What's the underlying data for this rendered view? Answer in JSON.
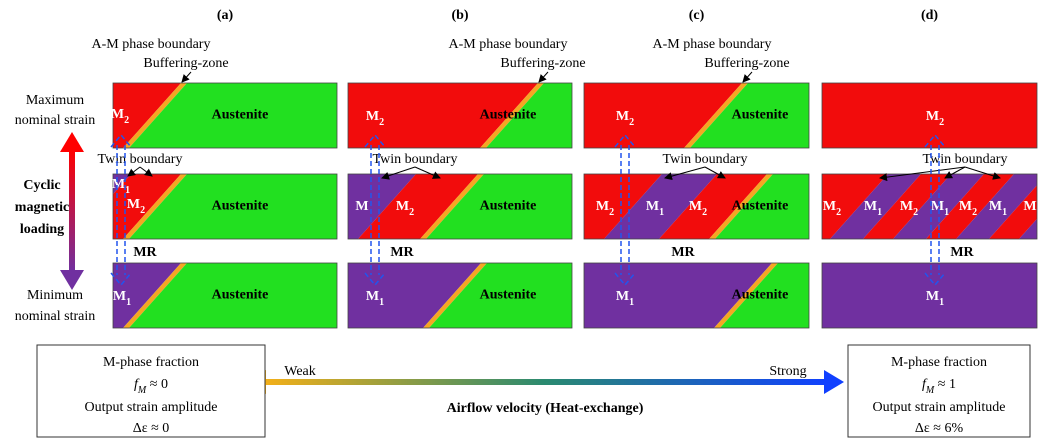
{
  "panels": [
    {
      "label": "(a)",
      "boundary_label": "A-M phase boundary",
      "buffer_label": "Buffering-zone",
      "twin_label": "Twin boundary",
      "mr_label": "MR",
      "rows": [
        {
          "phases": [
            {
              "base": "M",
              "sub": "2"
            }
          ],
          "austenite": "Austenite"
        },
        {
          "phases": [
            {
              "base": "M",
              "sub": "1"
            },
            {
              "base": "M",
              "sub": "2"
            }
          ],
          "austenite": "Austenite"
        },
        {
          "phases": [
            {
              "base": "M",
              "sub": "1"
            }
          ],
          "austenite": "Austenite"
        }
      ]
    },
    {
      "label": "(b)",
      "boundary_label": "A-M phase boundary",
      "buffer_label": "Buffering-zone",
      "twin_label": "Twin boundary",
      "mr_label": "MR",
      "rows": [
        {
          "phases": [
            {
              "base": "M",
              "sub": "2"
            }
          ],
          "austenite": "Austenite"
        },
        {
          "phases": [
            "M",
            {
              "base": "M",
              "sub": "2"
            }
          ],
          "austenite": "Austenite"
        },
        {
          "phases": [
            {
              "base": "M",
              "sub": "1"
            }
          ],
          "austenite": "Austenite"
        }
      ]
    },
    {
      "label": "(c)",
      "boundary_label": "A-M phase boundary",
      "buffer_label": "Buffering-zone",
      "twin_label": "Twin boundary",
      "mr_label": "MR",
      "rows": [
        {
          "phases": [
            {
              "base": "M",
              "sub": "2"
            }
          ],
          "austenite": "Austenite"
        },
        {
          "phases": [
            {
              "base": "M",
              "sub": "2"
            },
            {
              "base": "M",
              "sub": "1"
            },
            {
              "base": "M",
              "sub": "2"
            }
          ],
          "austenite": "Austenite"
        },
        {
          "phases": [
            {
              "base": "M",
              "sub": "1"
            }
          ],
          "austenite": "Austenite"
        }
      ]
    },
    {
      "label": "(d)",
      "twin_label": "Twin boundary",
      "mr_label": "MR",
      "rows": [
        {
          "phases": [
            {
              "base": "M",
              "sub": "2"
            }
          ]
        },
        {
          "phases": [
            {
              "base": "M",
              "sub": "2"
            },
            {
              "base": "M",
              "sub": "1"
            },
            {
              "base": "M",
              "sub": "2"
            },
            {
              "base": "M",
              "sub": "1"
            },
            {
              "base": "M",
              "sub": "2"
            },
            {
              "base": "M",
              "sub": "1"
            },
            "M"
          ]
        },
        {
          "phases": [
            {
              "base": "M",
              "sub": "1"
            }
          ]
        }
      ]
    }
  ],
  "left_labels": {
    "maximum": [
      "Maximum",
      "nominal strain"
    ],
    "loading": [
      "Cyclic",
      "magnetic",
      "loading"
    ],
    "minimum": [
      "Minimum",
      "nominal strain"
    ]
  },
  "boxes": [
    {
      "lines": [
        "M-phase fraction",
        {
          "base": "f",
          "sub": "M",
          "tail": " ≈ 0"
        },
        "Output strain amplitude",
        "Δε ≈ 0"
      ]
    },
    {
      "lines": [
        "M-phase fraction",
        {
          "base": "f",
          "sub": "M",
          "tail": " ≈ 1"
        },
        "Output strain amplitude",
        "Δε ≈ 6%"
      ]
    }
  ],
  "airflow": {
    "weak": "Weak",
    "strong": "Strong",
    "title": "Airflow velocity (Heat-exchange)"
  }
}
